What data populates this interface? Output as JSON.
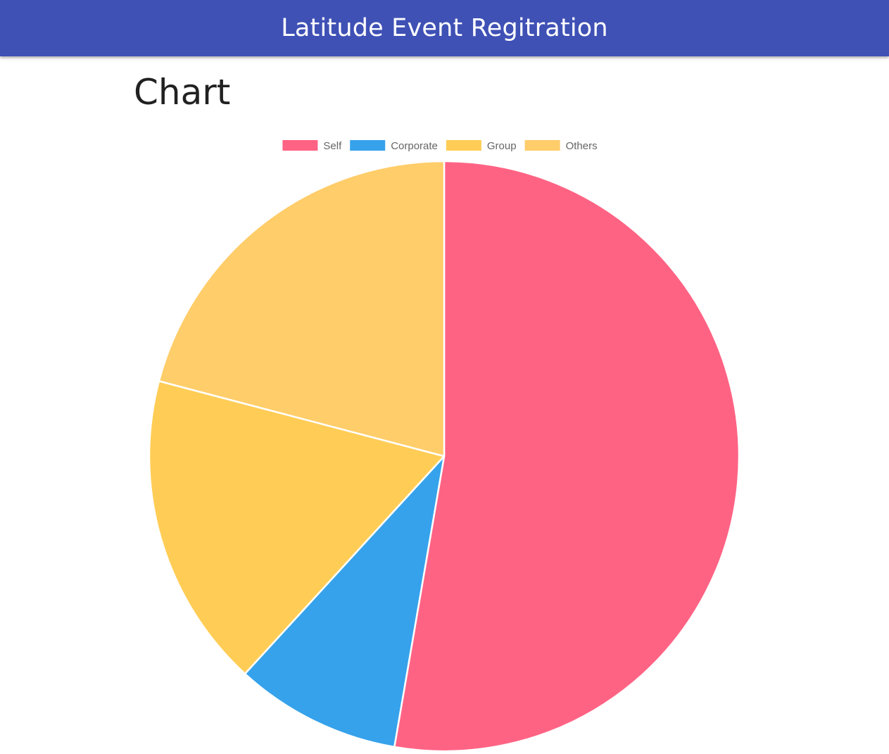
{
  "app": {
    "title": "Latitude Event Regitration"
  },
  "page": {
    "heading": "Chart"
  },
  "chart_data": {
    "type": "pie",
    "title": "",
    "legend_position": "top",
    "categories": [
      "Self",
      "Corporate",
      "Group",
      "Others"
    ],
    "values": [
      52.7,
      9.1,
      17.3,
      20.9
    ],
    "colors": [
      "#ff6384",
      "#36a2eb",
      "#ffcd56",
      "#ffcd69"
    ]
  },
  "colors": {
    "app_bar": "#3f51b5",
    "slice_border": "#ffffff"
  }
}
